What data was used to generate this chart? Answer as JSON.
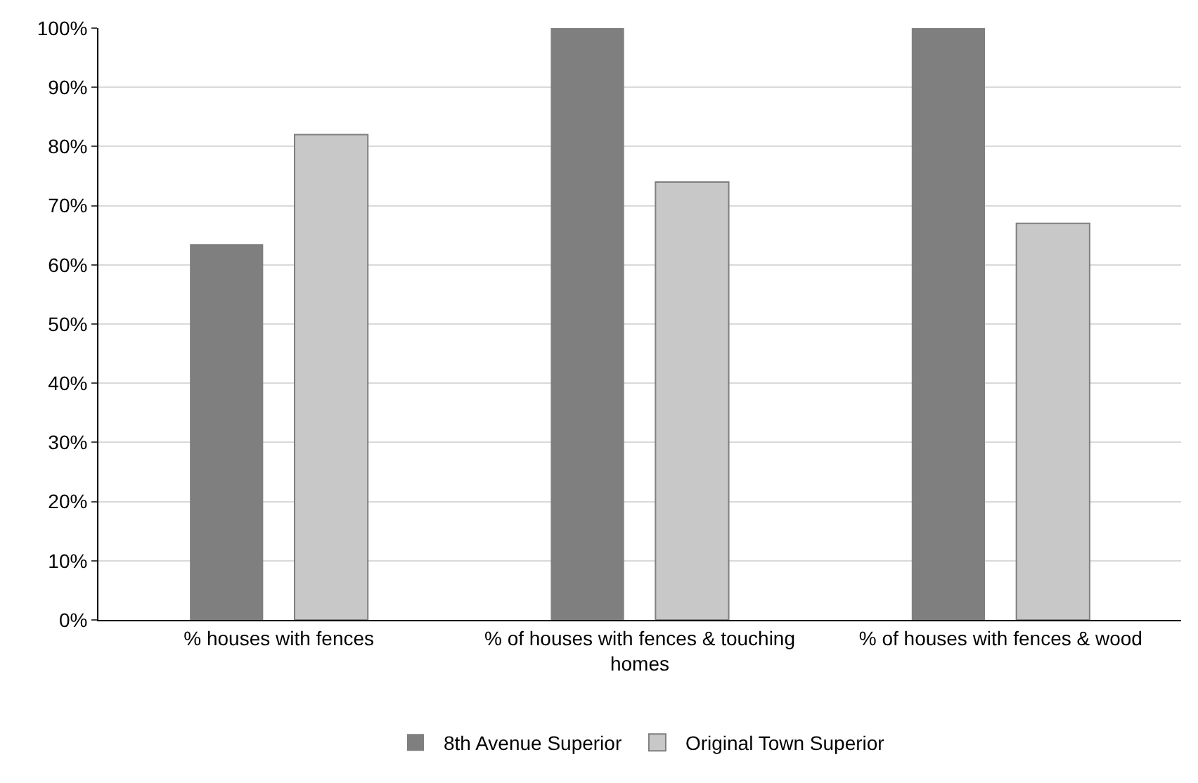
{
  "chart_data": {
    "type": "bar",
    "categories": [
      "% houses with fences",
      "% of houses with fences & touching homes",
      "% of houses with fences & wood"
    ],
    "series": [
      {
        "name": "8th Avenue Superior",
        "color": "#7f7f7f",
        "values": [
          63.5,
          100,
          100
        ]
      },
      {
        "name": "Original Town Superior",
        "color": "#c8c8c8",
        "values": [
          82,
          74,
          67
        ]
      }
    ],
    "ylim": [
      0,
      100
    ],
    "yticks": [
      {
        "value": 0,
        "label": "0%"
      },
      {
        "value": 10,
        "label": "10%"
      },
      {
        "value": 20,
        "label": "20%"
      },
      {
        "value": 30,
        "label": "30%"
      },
      {
        "value": 40,
        "label": "40%"
      },
      {
        "value": 50,
        "label": "50%"
      },
      {
        "value": 60,
        "label": "60%"
      },
      {
        "value": 70,
        "label": "70%"
      },
      {
        "value": 80,
        "label": "80%"
      },
      {
        "value": 90,
        "label": "90%"
      },
      {
        "value": 100,
        "label": "100%"
      }
    ],
    "grid": "y",
    "legend": "bottom"
  }
}
